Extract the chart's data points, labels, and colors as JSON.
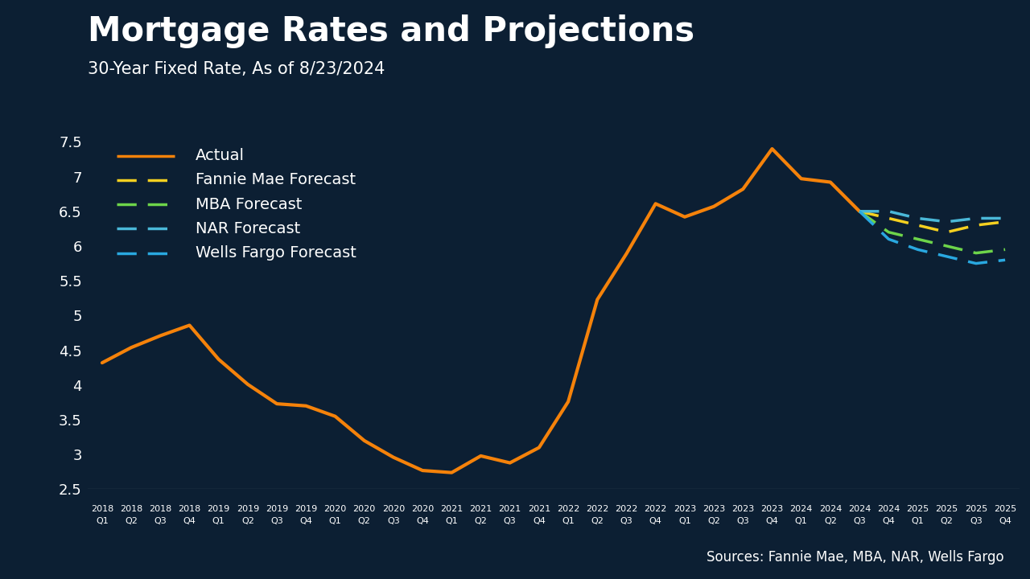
{
  "title": "Mortgage Rates and Projections",
  "subtitle": "30-Year Fixed Rate, As of 8/23/2024",
  "source": "Sources: Fannie Mae, MBA, NAR, Wells Fargo",
  "background_color": "#0c1f33",
  "footer_color": "#1a6fad",
  "text_color": "#ffffff",
  "ylim": [
    2.5,
    7.75
  ],
  "yticks": [
    2.5,
    3.0,
    3.5,
    4.0,
    4.5,
    5.0,
    5.5,
    6.0,
    6.5,
    7.0,
    7.5
  ],
  "ytick_labels": [
    "2.5",
    "3",
    "3.5",
    "4",
    "4.5",
    "5",
    "5.5",
    "6",
    "6.5",
    "7",
    "7.5"
  ],
  "actual_quarters": [
    "2018 Q1",
    "2018 Q2",
    "2018 Q3",
    "2018 Q4",
    "2019 Q1",
    "2019 Q2",
    "2019 Q3",
    "2019 Q4",
    "2020 Q1",
    "2020 Q2",
    "2020 Q3",
    "2020 Q4",
    "2021 Q1",
    "2021 Q2",
    "2021 Q3",
    "2021 Q4",
    "2022 Q1",
    "2022 Q2",
    "2022 Q3",
    "2022 Q4",
    "2023 Q1",
    "2023 Q2",
    "2023 Q3",
    "2023 Q4",
    "2024 Q1",
    "2024 Q2",
    "2024 Q3"
  ],
  "actual_values": [
    4.32,
    4.54,
    4.71,
    4.86,
    4.37,
    4.01,
    3.73,
    3.7,
    3.55,
    3.2,
    2.96,
    2.77,
    2.74,
    2.98,
    2.88,
    3.1,
    3.76,
    5.23,
    5.89,
    6.61,
    6.42,
    6.57,
    6.82,
    7.4,
    6.97,
    6.92,
    6.5
  ],
  "actual_color": "#f5820a",
  "actual_linewidth": 3.0,
  "forecast_quarters": [
    "2024 Q3",
    "2024 Q4",
    "2025 Q1",
    "2025 Q2",
    "2025 Q3",
    "2025 Q4"
  ],
  "fannie_mae": [
    6.5,
    6.4,
    6.3,
    6.2,
    6.3,
    6.35
  ],
  "mba": [
    6.5,
    6.2,
    6.1,
    6.0,
    5.9,
    5.95
  ],
  "nar": [
    6.5,
    6.5,
    6.4,
    6.35,
    6.4,
    6.4
  ],
  "wells_fargo": [
    6.5,
    6.1,
    5.95,
    5.85,
    5.75,
    5.8
  ],
  "fannie_color": "#f5d020",
  "mba_color": "#6dd44a",
  "nar_color": "#4ab8d8",
  "wells_color": "#29a8e0",
  "legend_entries": [
    "Actual",
    "Fannie Mae Forecast",
    "MBA Forecast",
    "NAR Forecast",
    "Wells Fargo Forecast"
  ],
  "title_fontsize": 30,
  "subtitle_fontsize": 15,
  "ytick_fontsize": 13,
  "xtick_fontsize": 8,
  "legend_fontsize": 14,
  "source_fontsize": 12
}
